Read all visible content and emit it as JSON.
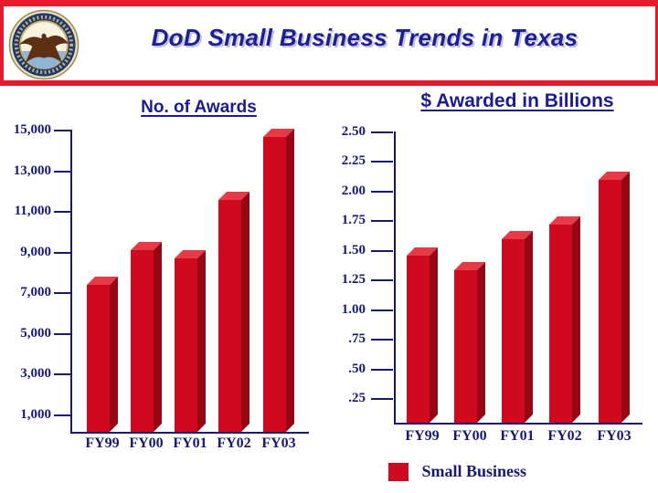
{
  "header": {
    "title": "DoD Small Business Trends in Texas",
    "logo": "department-of-the-navy-seal"
  },
  "legend": {
    "label": "Small Business",
    "color": "#cc0a22"
  },
  "colors": {
    "accent_red": "#e51a2b",
    "bar_front": "#cf0a1e",
    "bar_top": "#e73946",
    "bar_side": "#960614",
    "navy_text": "#191970",
    "title_navy": "#1c1c8f"
  },
  "chart_data": [
    {
      "type": "bar",
      "title": "No. of Awards",
      "categories": [
        "FY99",
        "FY00",
        "FY01",
        "FY02",
        "FY03"
      ],
      "values": [
        7400,
        9100,
        8700,
        11600,
        14700
      ],
      "series_name": "Small Business",
      "ylim": [
        1000,
        15000
      ],
      "yticks": [
        15000,
        13000,
        11000,
        9000,
        7000,
        5000,
        3000,
        1000
      ],
      "ytick_labels": [
        "15,000",
        "13,000",
        "11,000",
        "9,000",
        "7,000",
        "5,000",
        "3,000",
        "1,000"
      ],
      "xlabel": "",
      "ylabel": "",
      "grid": false,
      "bar_style": "3d-red"
    },
    {
      "type": "bar",
      "title": "$ Awarded in Billions",
      "categories": [
        "FY99",
        "FY00",
        "FY01",
        "FY02",
        "FY03"
      ],
      "values": [
        1.46,
        1.34,
        1.6,
        1.72,
        2.1
      ],
      "series_name": "Small Business",
      "ylim": [
        0.25,
        2.5
      ],
      "yticks": [
        2.5,
        2.25,
        2.0,
        1.75,
        1.5,
        1.25,
        1.0,
        0.75,
        0.5,
        0.25
      ],
      "ytick_labels": [
        "2.50",
        "2.25",
        "2.00",
        "1.75",
        "1.50",
        "1.25",
        "1.00",
        ".75",
        ".50",
        ".25"
      ],
      "xlabel": "",
      "ylabel": "",
      "grid": false,
      "bar_style": "3d-red"
    }
  ]
}
